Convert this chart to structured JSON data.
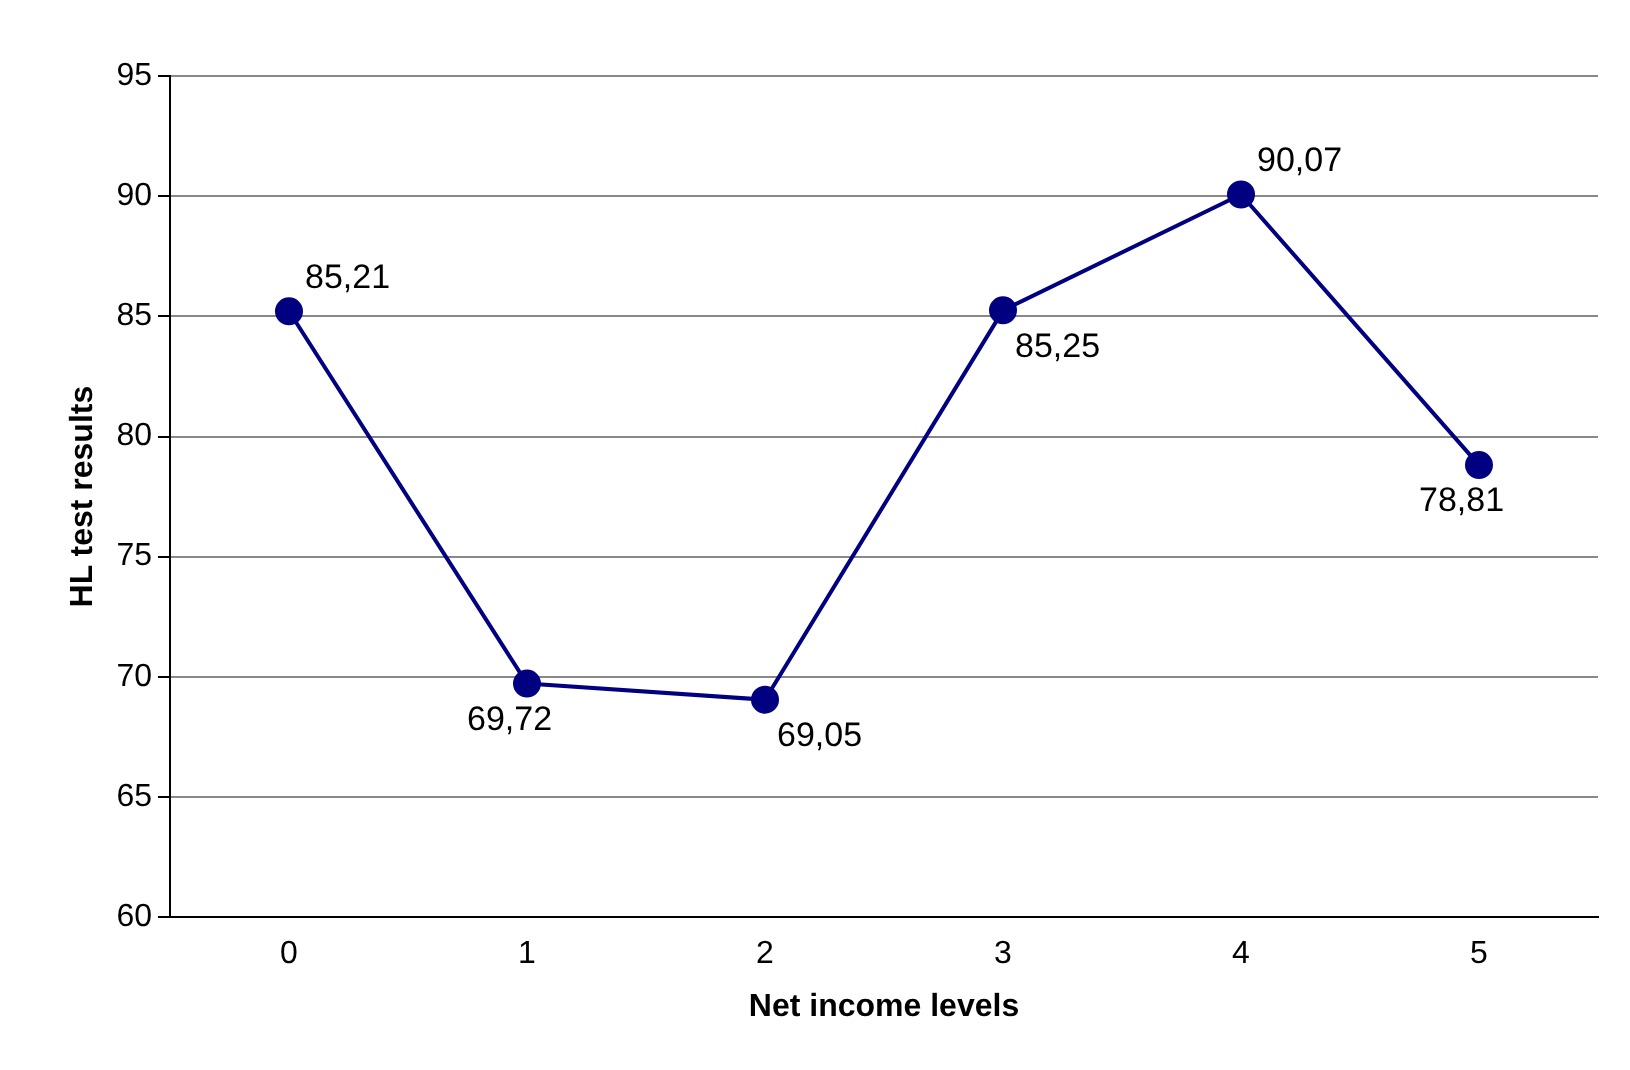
{
  "chart_data": {
    "type": "line",
    "xlabel": "Net income levels",
    "ylabel": "HL test results",
    "categories": [
      "0",
      "1",
      "2",
      "3",
      "4",
      "5"
    ],
    "series": [
      {
        "color": "#000080",
        "values": [
          85.21,
          69.72,
          69.05,
          85.25,
          90.07,
          78.81
        ],
        "value_labels": [
          "85,21",
          "69,72",
          "69,05",
          "85,25",
          "90,07",
          "78,81"
        ]
      }
    ],
    "ylim": [
      60,
      95
    ],
    "yticks": [
      60,
      65,
      70,
      75,
      80,
      85,
      90,
      95
    ],
    "grid": "y",
    "legend": false,
    "marker": "circle",
    "line_style": "solid"
  }
}
